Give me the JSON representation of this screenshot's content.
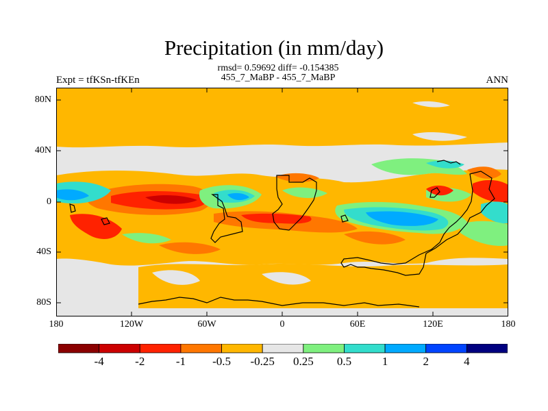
{
  "title": "Precipitation (in mm/day)",
  "stats_line1": "rmsd= 0.59692 diff= -0.154385",
  "stats_line2": "455_7_MaBP - 455_7_MaBP",
  "left_label": "Expt = tfKSn-tfKEn",
  "right_label": "ANN",
  "y_ticks": [
    "80N",
    "40N",
    "0",
    "40S",
    "80S"
  ],
  "x_ticks": [
    "180",
    "120W",
    "60W",
    "0",
    "60E",
    "120E",
    "180"
  ],
  "colorbar": {
    "colors": [
      "#8b0000",
      "#cc0000",
      "#ff2200",
      "#ff7700",
      "#ffb700",
      "#e6e6e6",
      "#7ff07f",
      "#33ddcc",
      "#00aaff",
      "#0044ff",
      "#000080"
    ],
    "labels": [
      "-4",
      "-2",
      "-1",
      "-0.5",
      "-0.25",
      "0.25",
      "0.5",
      "1",
      "2",
      "4"
    ]
  },
  "palette": {
    "strong_dry": "#cc0000",
    "dry": "#ff2200",
    "moderate_dry": "#ff7700",
    "slight_dry": "#ffb700",
    "neutral": "#e6e6e6",
    "slight_wet": "#7ff07f",
    "wet": "#33ddcc",
    "more_wet": "#00aaff",
    "strong_wet": "#0044ff"
  }
}
